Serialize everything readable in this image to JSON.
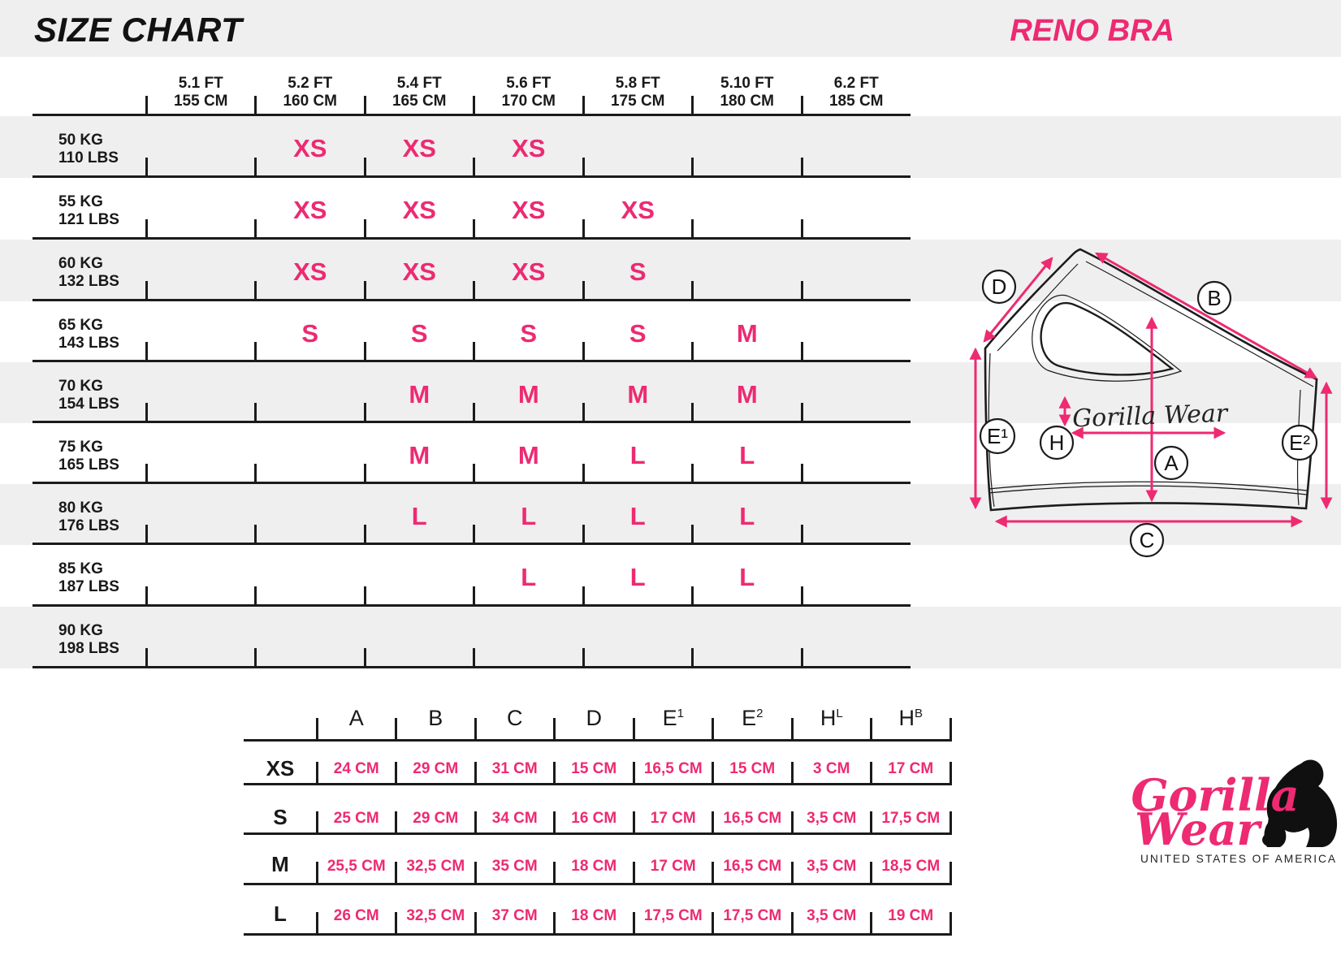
{
  "page": {
    "title": "SIZE CHART",
    "product": "RENO BRA",
    "colors": {
      "pink": "#ed2a72",
      "stripe": "#efefef",
      "ink": "#191919"
    }
  },
  "size_table": {
    "height_columns": [
      {
        "ft": "5.1 FT",
        "cm": "155 CM"
      },
      {
        "ft": "5.2 FT",
        "cm": "160 CM"
      },
      {
        "ft": "5.4 FT",
        "cm": "165 CM"
      },
      {
        "ft": "5.6 FT",
        "cm": "170 CM"
      },
      {
        "ft": "5.8 FT",
        "cm": "175 CM"
      },
      {
        "ft": "5.10 FT",
        "cm": "180 CM"
      },
      {
        "ft": "6.2 FT",
        "cm": "185 CM"
      }
    ],
    "rows": [
      {
        "kg": "50 KG",
        "lbs": "110 LBS",
        "sizes": [
          "",
          "XS",
          "XS",
          "XS",
          "",
          "",
          ""
        ]
      },
      {
        "kg": "55 KG",
        "lbs": "121 LBS",
        "sizes": [
          "",
          "XS",
          "XS",
          "XS",
          "XS",
          "",
          ""
        ]
      },
      {
        "kg": "60 KG",
        "lbs": "132 LBS",
        "sizes": [
          "",
          "XS",
          "XS",
          "XS",
          "S",
          "",
          ""
        ]
      },
      {
        "kg": "65 KG",
        "lbs": "143 LBS",
        "sizes": [
          "",
          "S",
          "S",
          "S",
          "S",
          "M",
          ""
        ]
      },
      {
        "kg": "70 KG",
        "lbs": "154 LBS",
        "sizes": [
          "",
          "",
          "M",
          "M",
          "M",
          "M",
          ""
        ]
      },
      {
        "kg": "75 KG",
        "lbs": "165 LBS",
        "sizes": [
          "",
          "",
          "M",
          "M",
          "L",
          "L",
          ""
        ]
      },
      {
        "kg": "80 KG",
        "lbs": "176 LBS",
        "sizes": [
          "",
          "",
          "L",
          "L",
          "L",
          "L",
          ""
        ]
      },
      {
        "kg": "85 KG",
        "lbs": "187 LBS",
        "sizes": [
          "",
          "",
          "",
          "L",
          "L",
          "L",
          ""
        ]
      },
      {
        "kg": "90 KG",
        "lbs": "198 LBS",
        "sizes": [
          "",
          "",
          "",
          "",
          "",
          "",
          ""
        ]
      }
    ]
  },
  "diagram": {
    "labels": {
      "d": "D",
      "b": "B",
      "e1": "E¹",
      "e2": "E²",
      "h": "H",
      "a": "A",
      "c": "C"
    },
    "brand_script": "Gorilla Wear"
  },
  "measure_table": {
    "columns": [
      {
        "base": "A",
        "sup": ""
      },
      {
        "base": "B",
        "sup": ""
      },
      {
        "base": "C",
        "sup": ""
      },
      {
        "base": "D",
        "sup": ""
      },
      {
        "base": "E",
        "sup": "1"
      },
      {
        "base": "E",
        "sup": "2"
      },
      {
        "base": "H",
        "sup": "L"
      },
      {
        "base": "H",
        "sup": "B"
      }
    ],
    "rows": [
      {
        "size": "XS",
        "values": [
          "24 CM",
          "29 CM",
          "31 CM",
          "15 CM",
          "16,5 CM",
          "15 CM",
          "3 CM",
          "17 CM"
        ]
      },
      {
        "size": "S",
        "values": [
          "25 CM",
          "29 CM",
          "34 CM",
          "16 CM",
          "17 CM",
          "16,5 CM",
          "3,5 CM",
          "17,5 CM"
        ]
      },
      {
        "size": "M",
        "values": [
          "25,5 CM",
          "32,5 CM",
          "35 CM",
          "18 CM",
          "17 CM",
          "16,5 CM",
          "3,5 CM",
          "18,5 CM"
        ]
      },
      {
        "size": "L",
        "values": [
          "26 CM",
          "32,5 CM",
          "37 CM",
          "18 CM",
          "17,5 CM",
          "17,5 CM",
          "3,5 CM",
          "19 CM"
        ]
      }
    ]
  },
  "logo": {
    "script_top": "Gorilla",
    "script_bottom": "Wear",
    "tagline": "UNITED STATES OF AMERICA"
  }
}
